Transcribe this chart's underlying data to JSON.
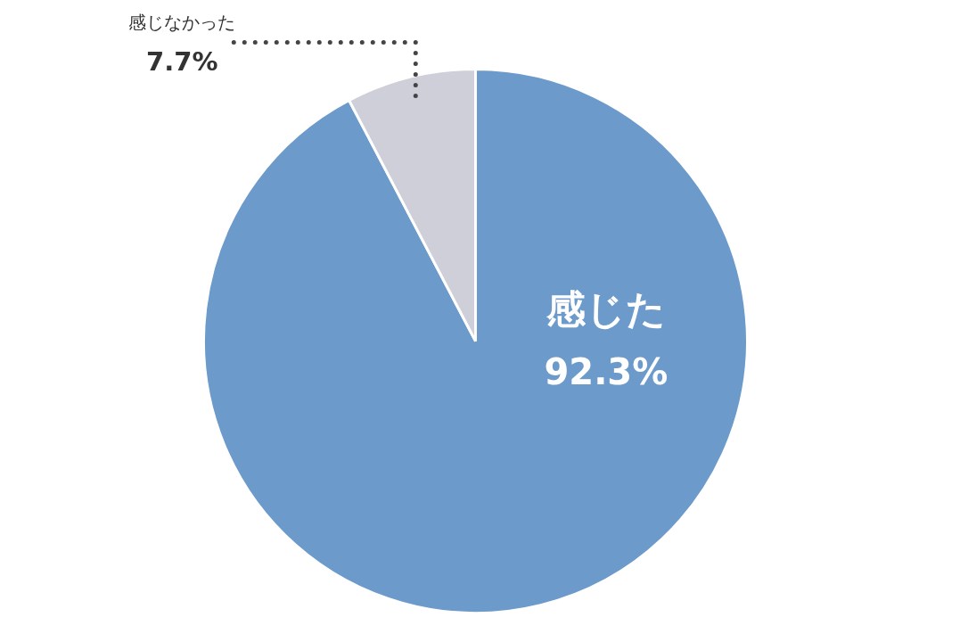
{
  "chart_data": {
    "type": "pie",
    "categories": [
      "感じた",
      "感じなかった"
    ],
    "values": [
      92.3,
      7.7
    ],
    "colors": [
      "#6b9acb",
      "#cfcfd9"
    ],
    "value_labels": [
      "92.3%",
      "7.7%"
    ]
  }
}
